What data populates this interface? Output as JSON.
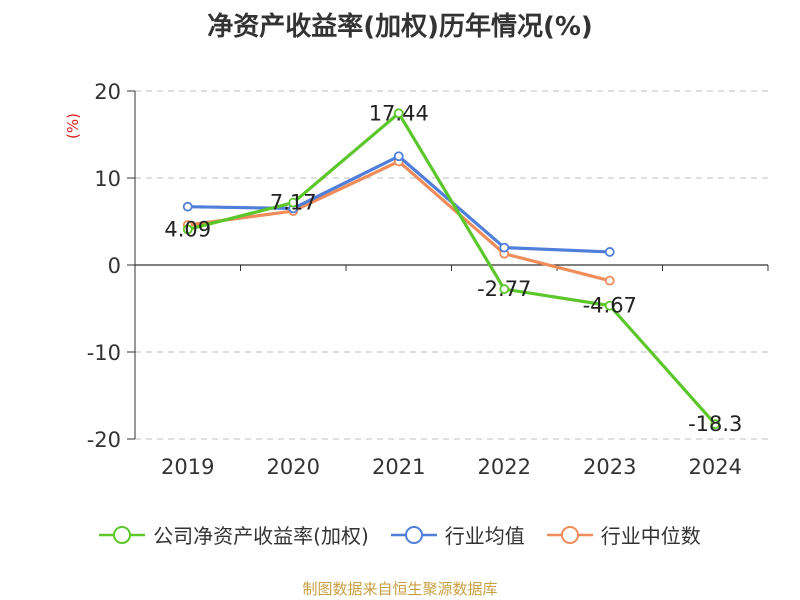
{
  "chart_data": {
    "type": "line",
    "title": "净资产收益率(加权)历年情况(%)",
    "ylabel": "(%)",
    "xlabel": "",
    "categories": [
      "2019",
      "2020",
      "2021",
      "2022",
      "2023",
      "2024"
    ],
    "ylim": [
      -20,
      20
    ],
    "yticks": [
      20,
      10,
      0,
      -10,
      -20
    ],
    "grid": true,
    "legend": "bottom",
    "series": [
      {
        "name": "公司净资产收益率(加权)",
        "color": "#5cc72a",
        "values": [
          4.09,
          7.17,
          17.44,
          -2.77,
          -4.67,
          -18.3
        ],
        "labels": [
          "4.09",
          "7.17",
          "17.44",
          "-2.77",
          "-4.67",
          "-18.3"
        ]
      },
      {
        "name": "行业均值",
        "color": "#4f7fd9",
        "values": [
          6.7,
          6.5,
          12.5,
          2.0,
          1.5,
          null
        ]
      },
      {
        "name": "行业中位数",
        "color": "#f08c5a",
        "values": [
          4.6,
          6.2,
          11.9,
          1.3,
          -1.8,
          null
        ]
      }
    ],
    "source": "制图数据来自恒生聚源数据库"
  }
}
